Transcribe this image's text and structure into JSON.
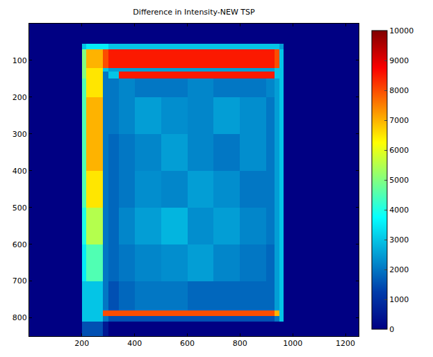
{
  "chart_data": {
    "type": "heatmap",
    "title": "Difference in Intensity-NEW TSP",
    "x_edges": [
      0,
      200,
      215,
      280,
      300,
      340,
      400,
      500,
      600,
      700,
      800,
      900,
      930,
      950,
      965,
      1250
    ],
    "y_edges": [
      0,
      55,
      70,
      120,
      130,
      150,
      200,
      300,
      400,
      500,
      600,
      700,
      780,
      795,
      810,
      850
    ],
    "z": [
      [
        0,
        0,
        0,
        0,
        0,
        0,
        0,
        0,
        0,
        0,
        0,
        0,
        0,
        0,
        0
      ],
      [
        0,
        3000,
        3500,
        3500,
        3000,
        3000,
        3000,
        3000,
        3000,
        3000,
        3000,
        3000,
        3000,
        2500,
        0
      ],
      [
        0,
        5000,
        7000,
        8000,
        8500,
        8500,
        8500,
        8500,
        8500,
        8500,
        8500,
        8500,
        8000,
        3000,
        0
      ],
      [
        0,
        5000,
        6500,
        3000,
        2500,
        2500,
        2500,
        2500,
        2500,
        2500,
        2500,
        2500,
        3000,
        3000,
        0
      ],
      [
        0,
        5000,
        6500,
        2000,
        3000,
        8500,
        8500,
        8500,
        8500,
        8500,
        8500,
        8500,
        3000,
        3000,
        0
      ],
      [
        0,
        4500,
        6500,
        2000,
        2000,
        2200,
        2000,
        2000,
        2200,
        2000,
        2000,
        2200,
        2500,
        3000,
        0
      ],
      [
        0,
        4500,
        7000,
        2000,
        2000,
        2200,
        2500,
        2300,
        2200,
        2500,
        2300,
        2000,
        2500,
        3000,
        0
      ],
      [
        0,
        4500,
        7000,
        2000,
        1800,
        2000,
        2200,
        2500,
        2200,
        2000,
        2300,
        2000,
        2500,
        3000,
        0
      ],
      [
        0,
        4500,
        6500,
        2000,
        1800,
        2000,
        2300,
        2200,
        2500,
        2300,
        2000,
        2000,
        2500,
        3000,
        0
      ],
      [
        0,
        4000,
        5500,
        2000,
        1800,
        2200,
        2500,
        2800,
        2300,
        2500,
        2200,
        2000,
        2500,
        3000,
        0
      ],
      [
        0,
        3500,
        4500,
        2000,
        1800,
        2000,
        2200,
        2300,
        2500,
        2200,
        2000,
        1800,
        2500,
        3000,
        0
      ],
      [
        0,
        3000,
        3000,
        2000,
        1500,
        1800,
        2000,
        2000,
        1800,
        1800,
        1800,
        1800,
        2500,
        3000,
        0
      ],
      [
        0,
        3000,
        3000,
        8000,
        8000,
        8000,
        8000,
        8000,
        8000,
        8000,
        8000,
        8000,
        7000,
        3000,
        0
      ],
      [
        0,
        3000,
        3000,
        2000,
        1500,
        1500,
        1500,
        1500,
        1500,
        1500,
        1500,
        1500,
        2000,
        3000,
        0
      ],
      [
        0,
        1500,
        1500,
        500,
        0,
        0,
        0,
        0,
        0,
        0,
        0,
        0,
        0,
        0,
        0
      ]
    ],
    "xlim": [
      0,
      1250
    ],
    "xticks": [
      200,
      400,
      600,
      800,
      1000,
      1200
    ],
    "ylim": [
      850,
      0
    ],
    "yticks": [
      100,
      200,
      300,
      400,
      500,
      600,
      700,
      800
    ],
    "zlim": [
      0,
      10000
    ],
    "zticks": [
      0,
      1000,
      2000,
      3000,
      4000,
      5000,
      6000,
      7000,
      8000,
      9000,
      10000
    ],
    "grid": false
  }
}
